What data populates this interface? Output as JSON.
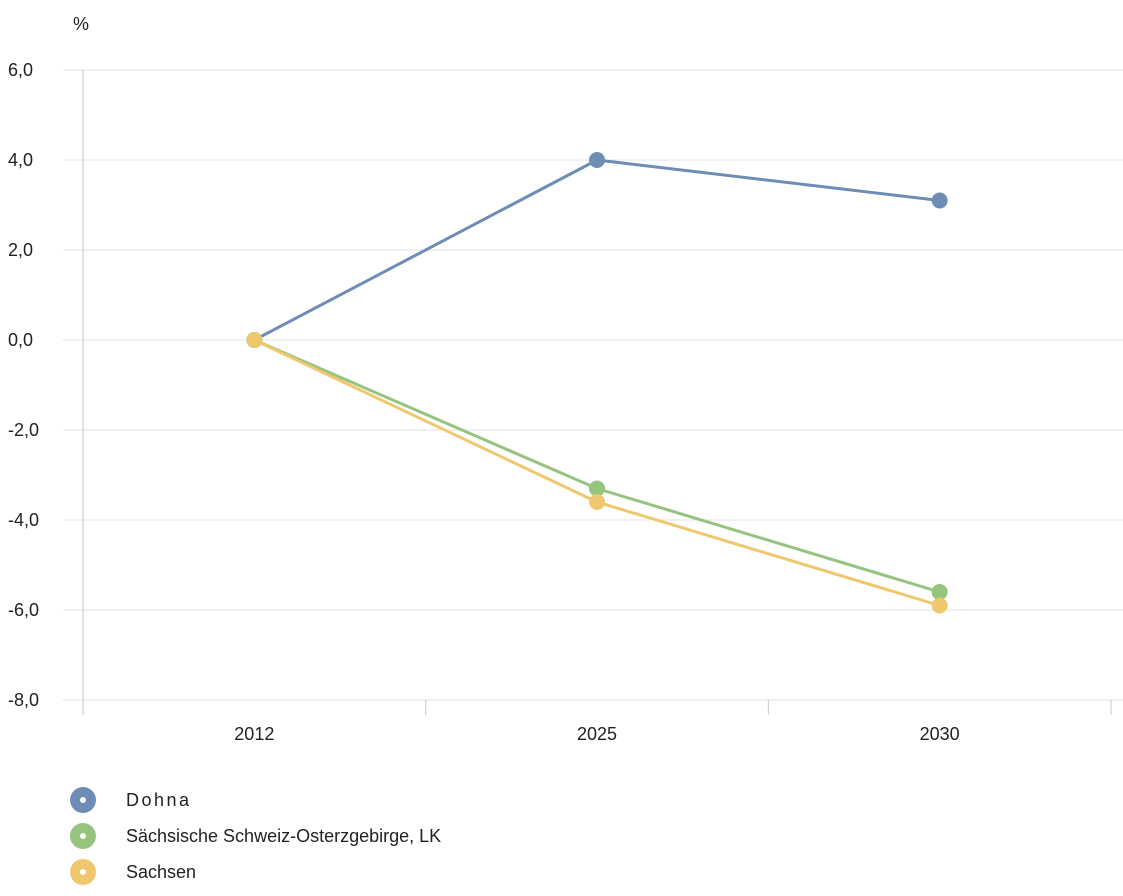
{
  "chart_data": {
    "type": "line",
    "title": "",
    "xlabel": "",
    "ylabel": "%",
    "categories": [
      "2012",
      "2025",
      "2030"
    ],
    "ylim": [
      -8,
      6
    ],
    "yticks": [
      6,
      4,
      2,
      0,
      -2,
      -4,
      -6,
      -8
    ],
    "ytick_labels": [
      "6,0",
      "4,0",
      "2,0",
      "0,0",
      "-2,0",
      "-4,0",
      "-6,0",
      "-8,0"
    ],
    "grid": true,
    "legend_position": "bottom-left",
    "series": [
      {
        "name": "Dohna",
        "color": "#6d8db5",
        "values": [
          0,
          4.0,
          3.1
        ]
      },
      {
        "name": "Sächsische Schweiz-Osterzgebirge, LK",
        "color": "#95c47e",
        "values": [
          0,
          -3.3,
          -5.6
        ]
      },
      {
        "name": "Sachsen",
        "color": "#efc86e",
        "values": [
          0,
          -3.6,
          -5.9
        ]
      }
    ]
  }
}
